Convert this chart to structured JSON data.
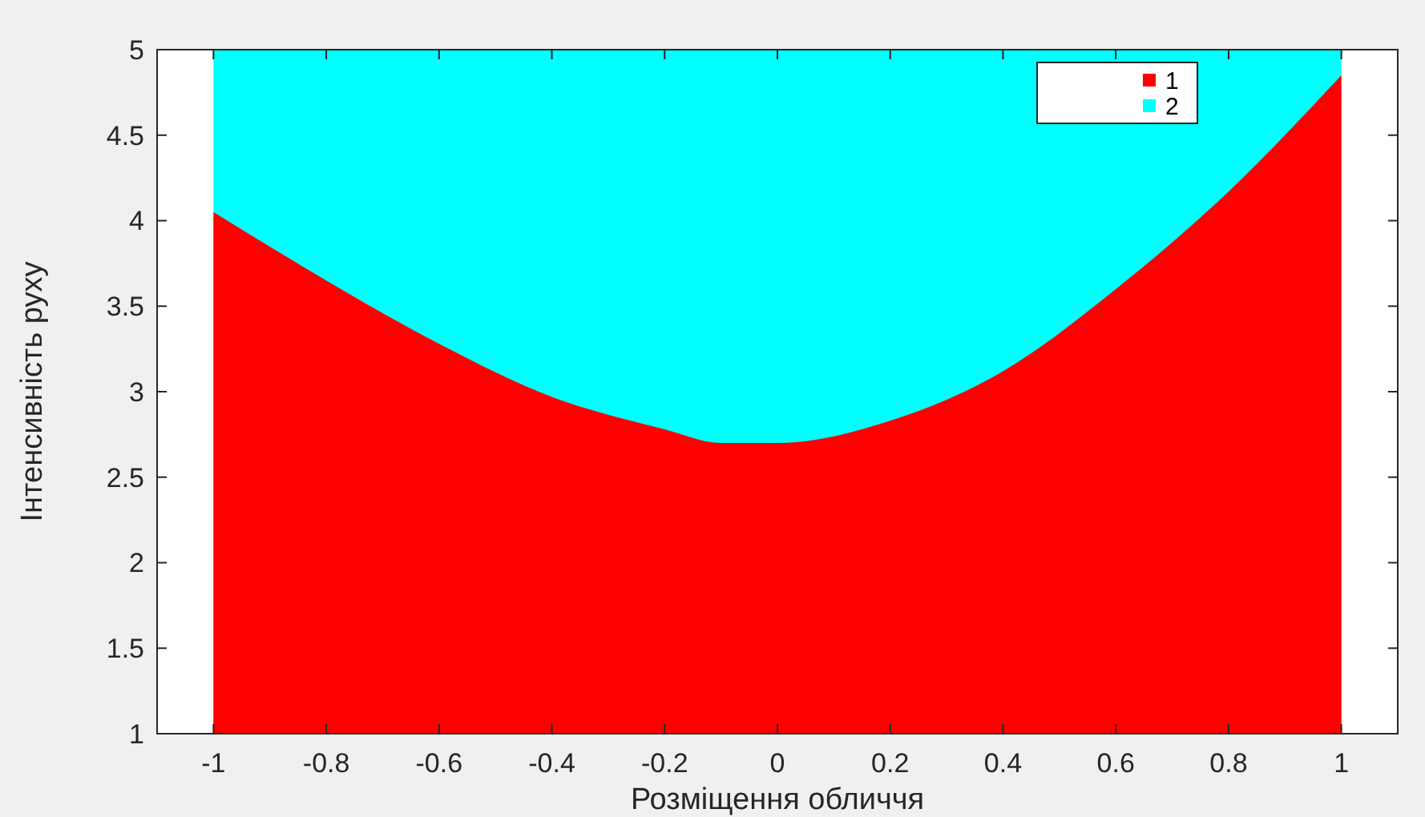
{
  "chart_data": {
    "type": "area",
    "xlabel": "Розміщення обличчя",
    "ylabel": "Інтенсивність руху",
    "x": [
      -1,
      -0.8,
      -0.6,
      -0.4,
      -0.2,
      -0.1,
      0,
      0.2,
      0.4,
      0.6,
      0.8,
      1
    ],
    "series": [
      {
        "name": "2",
        "color": "#00ffff",
        "values": [
          5,
          5,
          5,
          5,
          5,
          5,
          5,
          5,
          5,
          5,
          5,
          5
        ]
      },
      {
        "name": "1",
        "color": "#ff0000",
        "values": [
          4.05,
          3.65,
          3.28,
          2.97,
          2.78,
          2.7,
          2.7,
          2.83,
          3.12,
          3.6,
          4.17,
          4.85
        ]
      }
    ],
    "xlim": [
      -1.1,
      1.1
    ],
    "xticks": [
      -1,
      -0.8,
      -0.6,
      -0.4,
      -0.2,
      0,
      0.2,
      0.4,
      0.6,
      0.8,
      1
    ],
    "ylim": [
      1,
      5
    ],
    "yticks": [
      1,
      1.5,
      2,
      2.5,
      3,
      3.5,
      4,
      4.5,
      5
    ],
    "grid": false,
    "legend": "top right"
  }
}
